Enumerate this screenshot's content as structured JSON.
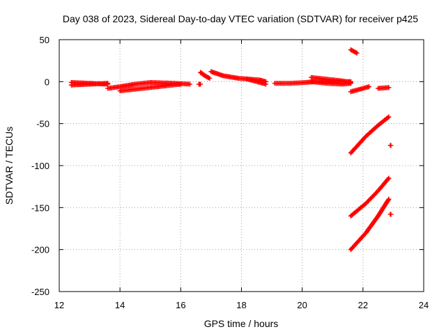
{
  "chart_data": {
    "type": "scatter",
    "title": "Day 038 of 2023, Sidereal Day-to-day VTEC variation (SDTVAR) for receiver p425",
    "xlabel": "GPS time / hours",
    "ylabel": "SDTVAR / TECUs",
    "xlim": [
      12,
      24
    ],
    "ylim": [
      -250,
      50
    ],
    "xticks": [
      12,
      14,
      16,
      18,
      20,
      22,
      24
    ],
    "yticks": [
      -250,
      -200,
      -150,
      -100,
      -50,
      0,
      50
    ],
    "grid": true,
    "marker": "plus",
    "color": "#ff0000",
    "series": [
      {
        "segments": [
          [
            [
              12.4,
              -4
            ],
            [
              13.0,
              -3
            ],
            [
              13.6,
              -2
            ]
          ],
          [
            [
              12.4,
              -1
            ],
            [
              13.0,
              -2
            ],
            [
              13.6,
              -3
            ]
          ],
          [
            [
              13.6,
              -8
            ],
            [
              14.0,
              -6
            ],
            [
              14.5,
              -3
            ],
            [
              15.0,
              -1
            ],
            [
              15.8,
              -2
            ],
            [
              16.3,
              -3
            ]
          ],
          [
            [
              14.0,
              -11
            ],
            [
              14.5,
              -9
            ],
            [
              15.0,
              -7
            ],
            [
              15.5,
              -5
            ],
            [
              16.0,
              -3
            ]
          ],
          [
            [
              16.6,
              -3
            ],
            [
              16.65,
              -3
            ]
          ],
          [
            [
              16.65,
              11
            ],
            [
              16.8,
              7
            ],
            [
              16.95,
              4
            ]
          ],
          [
            [
              17.0,
              12
            ],
            [
              17.4,
              7
            ],
            [
              17.9,
              4
            ],
            [
              18.6,
              2
            ],
            [
              18.8,
              0
            ]
          ],
          [
            [
              18.2,
              3
            ],
            [
              18.5,
              0
            ],
            [
              18.8,
              -3
            ]
          ],
          [
            [
              19.1,
              -2
            ],
            [
              19.6,
              -2
            ],
            [
              20.1,
              -1
            ],
            [
              20.4,
              0
            ],
            [
              21.0,
              0
            ],
            [
              21.6,
              0
            ]
          ],
          [
            [
              20.3,
              5
            ],
            [
              20.8,
              3
            ],
            [
              21.3,
              1
            ],
            [
              21.6,
              -1
            ]
          ],
          [
            [
              20.3,
              0
            ],
            [
              20.8,
              -2
            ],
            [
              21.3,
              -3
            ],
            [
              21.6,
              -2
            ]
          ],
          [
            [
              21.6,
              38
            ],
            [
              21.8,
              34
            ]
          ],
          [
            [
              21.6,
              -12
            ],
            [
              21.9,
              -9
            ],
            [
              22.2,
              -6
            ]
          ],
          [
            [
              22.5,
              -8
            ],
            [
              22.85,
              -7
            ]
          ],
          [
            [
              21.6,
              -85
            ],
            [
              22.1,
              -65
            ],
            [
              22.5,
              -52
            ],
            [
              22.85,
              -42
            ]
          ],
          [
            [
              22.9,
              -76
            ],
            [
              22.92,
              -76
            ]
          ],
          [
            [
              21.6,
              -160
            ],
            [
              22.1,
              -145
            ],
            [
              22.5,
              -130
            ],
            [
              22.85,
              -115
            ]
          ],
          [
            [
              21.6,
              -200
            ],
            [
              22.1,
              -180
            ],
            [
              22.5,
              -160
            ],
            [
              22.85,
              -140
            ]
          ],
          [
            [
              22.9,
              -158
            ],
            [
              22.92,
              -158
            ]
          ]
        ]
      }
    ]
  }
}
